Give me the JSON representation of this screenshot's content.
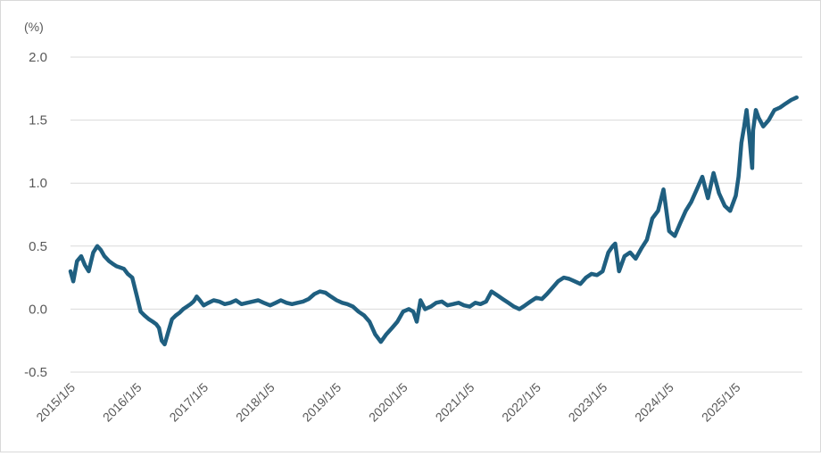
{
  "chart_data": {
    "type": "line",
    "unit_label": "(%)",
    "title": "",
    "xlabel": "",
    "ylabel": "",
    "ylim": [
      -0.5,
      2.0
    ],
    "y_ticks": [
      "2.0",
      "1.5",
      "1.0",
      "0.5",
      "0.0",
      "-0.5"
    ],
    "y_tick_values": [
      2.0,
      1.5,
      1.0,
      0.5,
      0.0,
      -0.5
    ],
    "x_tick_labels": [
      "2015/1/5",
      "2016/1/5",
      "2017/1/5",
      "2018/1/5",
      "2019/1/5",
      "2020/1/5",
      "2021/1/5",
      "2022/1/5",
      "2023/1/5",
      "2024/1/5",
      "2025/1/5"
    ],
    "x_tick_dates": [
      "2015-01-05",
      "2016-01-05",
      "2017-01-05",
      "2018-01-05",
      "2019-01-05",
      "2020-01-05",
      "2021-01-05",
      "2022-01-05",
      "2023-01-05",
      "2024-01-05",
      "2025-01-05"
    ],
    "xlim": [
      "2015-01-05",
      "2026-01-05"
    ],
    "grid": "horizontal",
    "legend": "none",
    "line_color": "#1f5f80",
    "series": [
      {
        "x": [
          "2015-01-05",
          "2015-01-20",
          "2015-02-10",
          "2015-03-05",
          "2015-03-25",
          "2015-04-15",
          "2015-05-10",
          "2015-06-01",
          "2015-06-20",
          "2015-07-10",
          "2015-08-05",
          "2015-08-25",
          "2015-09-15",
          "2015-10-05",
          "2015-10-25",
          "2015-11-15",
          "2015-12-10",
          "2016-01-05",
          "2016-01-25",
          "2016-02-15",
          "2016-03-10",
          "2016-04-01",
          "2016-04-20",
          "2016-05-05",
          "2016-05-20",
          "2016-06-05",
          "2016-06-25",
          "2016-07-15",
          "2016-08-05",
          "2016-08-25",
          "2016-09-15",
          "2016-10-05",
          "2016-10-25",
          "2016-11-10",
          "2016-11-20",
          "2016-11-28",
          "2016-12-15",
          "2017-01-05",
          "2017-02-01",
          "2017-03-01",
          "2017-04-01",
          "2017-05-01",
          "2017-06-01",
          "2017-07-01",
          "2017-08-01",
          "2017-09-01",
          "2017-10-01",
          "2017-11-01",
          "2017-12-01",
          "2018-01-05",
          "2018-02-05",
          "2018-03-05",
          "2018-04-05",
          "2018-05-05",
          "2018-06-05",
          "2018-07-05",
          "2018-08-05",
          "2018-09-05",
          "2018-10-05",
          "2018-11-05",
          "2018-12-05",
          "2019-01-05",
          "2019-02-05",
          "2019-03-05",
          "2019-04-05",
          "2019-05-05",
          "2019-06-05",
          "2019-07-05",
          "2019-08-05",
          "2019-09-05",
          "2019-10-05",
          "2019-11-05",
          "2019-12-05",
          "2020-01-05",
          "2020-02-05",
          "2020-03-01",
          "2020-03-20",
          "2020-04-10",
          "2020-05-05",
          "2020-06-05",
          "2020-07-05",
          "2020-08-05",
          "2020-09-05",
          "2020-10-05",
          "2020-11-05",
          "2020-12-05",
          "2021-01-05",
          "2021-02-05",
          "2021-03-05",
          "2021-04-05",
          "2021-05-05",
          "2021-06-05",
          "2021-07-05",
          "2021-08-05",
          "2021-09-05",
          "2021-10-05",
          "2021-11-05",
          "2021-12-05",
          "2022-01-05",
          "2022-02-05",
          "2022-03-05",
          "2022-04-05",
          "2022-05-05",
          "2022-06-05",
          "2022-07-05",
          "2022-08-05",
          "2022-09-05",
          "2022-10-05",
          "2022-11-05",
          "2022-12-05",
          "2023-01-05",
          "2023-02-05",
          "2023-03-01",
          "2023-03-15",
          "2023-04-05",
          "2023-05-05",
          "2023-06-05",
          "2023-07-05",
          "2023-08-05",
          "2023-09-05",
          "2023-10-05",
          "2023-11-05",
          "2023-12-05",
          "2024-01-05",
          "2024-02-05",
          "2024-03-05",
          "2024-04-05",
          "2024-05-05",
          "2024-06-05",
          "2024-07-05",
          "2024-08-05",
          "2024-09-05",
          "2024-10-05",
          "2024-11-05",
          "2024-12-05",
          "2025-01-05",
          "2025-01-20",
          "2025-02-05",
          "2025-02-20",
          "2025-03-05",
          "2025-03-20",
          "2025-04-05",
          "2025-04-10",
          "2025-04-25",
          "2025-05-10",
          "2025-06-05",
          "2025-07-05",
          "2025-08-05",
          "2025-09-05",
          "2025-10-05",
          "2025-11-05",
          "2025-12-05"
        ],
        "y": [
          0.3,
          0.22,
          0.38,
          0.42,
          0.35,
          0.3,
          0.45,
          0.5,
          0.47,
          0.42,
          0.38,
          0.36,
          0.34,
          0.33,
          0.32,
          0.28,
          0.25,
          0.1,
          -0.02,
          -0.05,
          -0.08,
          -0.1,
          -0.12,
          -0.15,
          -0.25,
          -0.28,
          -0.18,
          -0.08,
          -0.05,
          -0.03,
          0.0,
          0.02,
          0.04,
          0.06,
          0.08,
          0.1,
          0.07,
          0.03,
          0.05,
          0.07,
          0.06,
          0.04,
          0.05,
          0.07,
          0.04,
          0.05,
          0.06,
          0.07,
          0.05,
          0.03,
          0.05,
          0.07,
          0.05,
          0.04,
          0.05,
          0.06,
          0.08,
          0.12,
          0.14,
          0.13,
          0.1,
          0.07,
          0.05,
          0.04,
          0.02,
          -0.02,
          -0.05,
          -0.1,
          -0.2,
          -0.26,
          -0.2,
          -0.15,
          -0.1,
          -0.02,
          0.0,
          -0.02,
          -0.1,
          0.07,
          0.0,
          0.02,
          0.05,
          0.06,
          0.03,
          0.04,
          0.05,
          0.03,
          0.02,
          0.05,
          0.04,
          0.06,
          0.14,
          0.11,
          0.08,
          0.05,
          0.02,
          0.0,
          0.03,
          0.06,
          0.09,
          0.08,
          0.12,
          0.17,
          0.22,
          0.25,
          0.24,
          0.22,
          0.2,
          0.25,
          0.28,
          0.27,
          0.3,
          0.45,
          0.5,
          0.52,
          0.3,
          0.42,
          0.45,
          0.4,
          0.48,
          0.55,
          0.72,
          0.78,
          0.95,
          0.62,
          0.58,
          0.68,
          0.78,
          0.85,
          0.95,
          1.05,
          0.88,
          1.08,
          0.92,
          0.82,
          0.78,
          0.9,
          1.05,
          1.32,
          1.45,
          1.58,
          1.38,
          1.12,
          1.42,
          1.58,
          1.52,
          1.45,
          1.5,
          1.58,
          1.6,
          1.63,
          1.66,
          1.68
        ]
      }
    ]
  }
}
